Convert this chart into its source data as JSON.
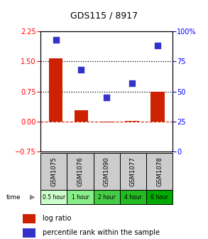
{
  "title": "GDS115 / 8917",
  "categories": [
    "GSM1075",
    "GSM1076",
    "GSM1090",
    "GSM1077",
    "GSM1078"
  ],
  "time_labels": [
    "0.5 hour",
    "1 hour",
    "2 hour",
    "4 hour",
    "6 hour"
  ],
  "log_ratio": [
    1.58,
    0.28,
    -0.02,
    0.02,
    0.75
  ],
  "percentile": [
    93,
    68,
    45,
    57,
    88
  ],
  "bar_color": "#cc2200",
  "dot_color": "#3333cc",
  "ylim_left": [
    -0.75,
    2.25
  ],
  "ylim_right": [
    0,
    100
  ],
  "yticks_left": [
    -0.75,
    0,
    0.75,
    1.5,
    2.25
  ],
  "yticks_right": [
    0,
    25,
    50,
    75,
    100
  ],
  "hline_y": [
    0.75,
    1.5
  ],
  "bg_color": "#ffffff",
  "time_box_colors": [
    "#ccffcc",
    "#88ee88",
    "#44cc44",
    "#22bb22",
    "#00aa00"
  ],
  "sample_box_color": "#cccccc",
  "title_fontsize": 9,
  "tick_fontsize": 7,
  "legend_fontsize": 7
}
